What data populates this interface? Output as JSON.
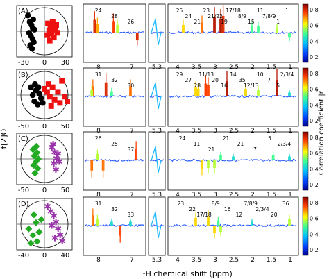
{
  "figure": {
    "ylabel_left": "t[2]O",
    "xlabel_bottom": "¹H chemical shift (ppm)",
    "colorbar_label": "Correlation coefficient |r|"
  },
  "panels": [
    {
      "label": "(A)",
      "score_x_ticks": [
        "-30",
        "0",
        "30"
      ],
      "peak_labels": [
        "24",
        "28",
        "26",
        "25",
        "24",
        "21",
        "23",
        "21/22",
        "19",
        "17/18",
        "8/9",
        "15",
        "11",
        "7/8/9",
        "1",
        "1"
      ],
      "colorbar_ticks": [
        "0.8",
        "0.6",
        "0.4",
        "0.2"
      ]
    },
    {
      "label": "(B)",
      "score_x_ticks": [
        "-50",
        "0",
        "50"
      ],
      "peak_labels": [
        "31",
        "32",
        "30",
        "29",
        "27",
        "28",
        "11/13",
        "20",
        "16",
        "14",
        "35",
        "12/13",
        "10",
        "7",
        "5",
        "2/3/4"
      ],
      "colorbar_ticks": [
        "0.8",
        "0.6",
        "0.4",
        "0.2"
      ]
    },
    {
      "label": "(C)",
      "score_x_ticks": [
        "-50",
        "0",
        "50"
      ],
      "peak_labels": [
        "26",
        "25",
        "37",
        "24",
        "11",
        "21",
        "21",
        "21",
        "7",
        "5",
        "2/3/4"
      ],
      "colorbar_ticks": [
        "0.8",
        "0.6",
        "0.4",
        "0.2"
      ]
    },
    {
      "label": "(D)",
      "score_x_ticks": [
        "-40",
        "0",
        "40"
      ],
      "peak_labels": [
        "31",
        "32",
        "33",
        "23",
        "22",
        "17/18",
        "8/9",
        "16",
        "12",
        "7/8/9",
        "2/3/4",
        "20",
        "36"
      ],
      "colorbar_ticks": [
        "0.8",
        "0.6",
        "0.4",
        "0.2"
      ]
    }
  ],
  "spectrum_ticks": {
    "aromatic": [
      "8",
      "7"
    ],
    "mid": [
      "5.3"
    ],
    "aliphatic": [
      "4",
      "3.5",
      "3",
      "2.5",
      "2",
      "1.5",
      "1"
    ]
  },
  "chart_data": [
    {
      "type": "scatter",
      "panel": "A",
      "series": [
        {
          "name": "",
          "marker": "circle",
          "color": "#000000",
          "values": [
            [
              -28,
              20
            ],
            [
              -25,
              12
            ],
            [
              -22,
              8
            ],
            [
              -20,
              4
            ],
            [
              -26,
              -2
            ],
            [
              -23,
              -6
            ],
            [
              -20,
              -10
            ],
            [
              -18,
              -14
            ],
            [
              -24,
              -18
            ],
            [
              -21,
              -22
            ],
            [
              -17,
              2
            ],
            [
              -19,
              15
            ]
          ]
        },
        {
          "name": "",
          "marker": "square",
          "color": "#ee1111",
          "values": [
            [
              6,
              10
            ],
            [
              10,
              6
            ],
            [
              14,
              4
            ],
            [
              8,
              0
            ],
            [
              12,
              -3
            ],
            [
              18,
              2
            ],
            [
              16,
              -8
            ],
            [
              22,
              -2
            ],
            [
              9,
              -12
            ],
            [
              20,
              8
            ],
            [
              14,
              12
            ],
            [
              5,
              -5
            ]
          ]
        }
      ]
    },
    {
      "type": "scatter",
      "panel": "B",
      "series": [
        {
          "name": "",
          "marker": "circle",
          "color": "#000000",
          "values": [
            [
              -40,
              10
            ],
            [
              -35,
              0
            ],
            [
              -30,
              -8
            ],
            [
              -25,
              6
            ],
            [
              -20,
              -12
            ],
            [
              -15,
              2
            ],
            [
              -10,
              -4
            ],
            [
              -28,
              14
            ],
            [
              -18,
              10
            ],
            [
              -5,
              -10
            ]
          ]
        },
        {
          "name": "",
          "marker": "square",
          "color": "#ee1111",
          "values": [
            [
              0,
              8
            ],
            [
              8,
              4
            ],
            [
              16,
              -2
            ],
            [
              24,
              10
            ],
            [
              30,
              -6
            ],
            [
              40,
              4
            ],
            [
              52,
              18
            ],
            [
              60,
              -2
            ],
            [
              68,
              -8
            ],
            [
              46,
              -10
            ],
            [
              20,
              -14
            ],
            [
              12,
              14
            ]
          ]
        }
      ]
    },
    {
      "type": "scatter",
      "panel": "C",
      "series": [
        {
          "name": "",
          "marker": "diamond",
          "color": "#22aa22",
          "values": [
            [
              -34,
              12
            ],
            [
              -30,
              4
            ],
            [
              -26,
              -4
            ],
            [
              -22,
              8
            ],
            [
              -20,
              -12
            ],
            [
              -28,
              -18
            ],
            [
              -24,
              16
            ],
            [
              -18,
              0
            ],
            [
              -32,
              -8
            ]
          ]
        },
        {
          "name": "",
          "marker": "star",
          "color": "#9933aa",
          "values": [
            [
              22,
              14
            ],
            [
              30,
              8
            ],
            [
              36,
              0
            ],
            [
              28,
              -6
            ],
            [
              34,
              -14
            ],
            [
              40,
              6
            ],
            [
              26,
              18
            ],
            [
              44,
              -4
            ]
          ]
        }
      ]
    },
    {
      "type": "scatter",
      "panel": "D",
      "series": [
        {
          "name": "",
          "marker": "star",
          "color": "#9933aa",
          "values": [
            [
              6,
              22
            ],
            [
              12,
              16
            ],
            [
              18,
              10
            ],
            [
              22,
              2
            ],
            [
              26,
              -6
            ],
            [
              14,
              -2
            ],
            [
              30,
              -14
            ],
            [
              34,
              -22
            ],
            [
              20,
              -18
            ]
          ]
        },
        {
          "name": "",
          "marker": "diamond",
          "color": "#22aa22",
          "values": [
            [
              -30,
              -6
            ],
            [
              -22,
              -14
            ],
            [
              -16,
              2
            ],
            [
              -10,
              -10
            ],
            [
              -26,
              -24
            ],
            [
              -6,
              6
            ],
            [
              -14,
              -22
            ],
            [
              -20,
              12
            ]
          ]
        }
      ]
    }
  ],
  "colors": {
    "circle": "#333333",
    "axis": "#000000"
  }
}
